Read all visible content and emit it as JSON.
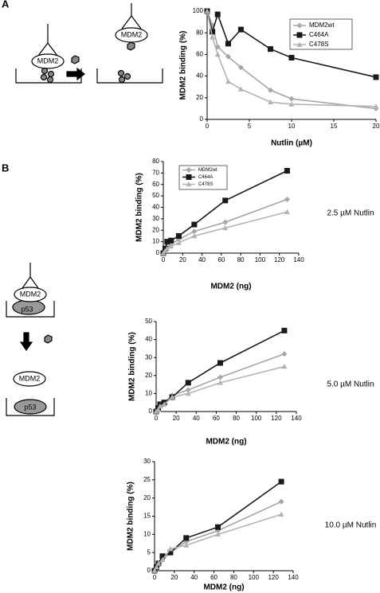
{
  "figure": {
    "panel_a": "A",
    "panel_b": "B"
  },
  "diagram": {
    "a_before": "MDM2",
    "a_after": "MDM2",
    "b_top": "MDM2",
    "b_top_p53": "p53",
    "b_bottom": "MDM2",
    "b_bottom_p53": "p53"
  },
  "chart_data": [
    {
      "type": "line",
      "x_label": "Nutlin (µM)",
      "y_label": "MDM2 binding (%)",
      "x": [
        0,
        0.625,
        1.25,
        2.5,
        4,
        7.5,
        10,
        20
      ],
      "series": [
        {
          "name": "MDM2wt",
          "color": "#a6a6a6",
          "marker": "diamond",
          "values": [
            100,
            87,
            67,
            58,
            48,
            27,
            19,
            10
          ]
        },
        {
          "name": "C464A",
          "color": "#1a1a1a",
          "marker": "square",
          "values": [
            100,
            81,
            97,
            70,
            83,
            65,
            57,
            39
          ]
        },
        {
          "name": "C478S",
          "color": "#b3b3b3",
          "marker": "triangle",
          "values": [
            100,
            76,
            60,
            35,
            28,
            16,
            14,
            12
          ]
        }
      ],
      "xlim": [
        0,
        20
      ],
      "xticks": [
        0,
        5,
        10,
        15,
        20
      ],
      "ylim": [
        0,
        100
      ],
      "yticks": [
        0,
        20,
        40,
        60,
        80,
        100
      ],
      "legend": "upper right"
    },
    {
      "type": "line",
      "x_label": "MDM2 (ng)",
      "y_label": "MDM2 binding (%)",
      "annotation": "2.5 µM Nutlin",
      "x": [
        0,
        2,
        4,
        8,
        16,
        32,
        64,
        128
      ],
      "series": [
        {
          "name": "MDM2wt",
          "color": "#a6a6a6",
          "marker": "diamond",
          "values": [
            0,
            3,
            5,
            8,
            12,
            19,
            27,
            47
          ]
        },
        {
          "name": "C464A",
          "color": "#1a1a1a",
          "marker": "square",
          "values": [
            0,
            4,
            10,
            11,
            15,
            25,
            46,
            72
          ]
        },
        {
          "name": "C478S",
          "color": "#b3b3b3",
          "marker": "triangle",
          "values": [
            0,
            2,
            4,
            6,
            9,
            15,
            22,
            36
          ]
        }
      ],
      "xlim": [
        0,
        140
      ],
      "xticks": [
        0,
        20,
        40,
        60,
        80,
        100,
        120,
        140
      ],
      "ylim": [
        0,
        80
      ],
      "yticks": [
        0,
        10,
        20,
        30,
        40,
        50,
        60,
        70,
        80
      ],
      "legend": "upper left"
    },
    {
      "type": "line",
      "x_label": "MDM2 (ng)",
      "y_label": "MDM2 binding (%)",
      "annotation": "5.0 µM Nutlin",
      "x": [
        0,
        2,
        4,
        8,
        16,
        32,
        64,
        128
      ],
      "series": [
        {
          "color": "#a6a6a6",
          "marker": "diamond",
          "values": [
            0,
            2,
            3,
            5,
            9,
            12,
            19,
            32
          ]
        },
        {
          "color": "#1a1a1a",
          "marker": "square",
          "values": [
            0,
            2,
            4,
            5,
            8,
            16,
            27,
            45
          ]
        },
        {
          "color": "#b3b3b3",
          "marker": "triangle",
          "values": [
            0,
            1,
            3,
            4,
            8,
            10,
            16,
            25
          ]
        }
      ],
      "xlim": [
        0,
        140
      ],
      "xticks": [
        0,
        20,
        40,
        60,
        80,
        100,
        120,
        140
      ],
      "ylim": [
        0,
        50
      ],
      "yticks": [
        0,
        10,
        20,
        30,
        40,
        50
      ]
    },
    {
      "type": "line",
      "x_label": "MDM2 (ng)",
      "y_label": "MDM2 binding (%)",
      "annotation": "10.0 µM Nutlin",
      "x": [
        0,
        2,
        4,
        8,
        16,
        32,
        64,
        128
      ],
      "series": [
        {
          "color": "#a6a6a6",
          "marker": "diamond",
          "values": [
            0,
            1,
            2,
            3,
            5,
            8,
            11,
            19
          ]
        },
        {
          "color": "#1a1a1a",
          "marker": "square",
          "values": [
            0,
            1,
            2,
            4,
            5,
            9,
            12,
            24.5
          ]
        },
        {
          "color": "#b3b3b3",
          "marker": "triangle",
          "values": [
            0,
            1,
            2,
            3,
            6,
            7,
            10,
            15.5
          ]
        }
      ],
      "xlim": [
        0,
        140
      ],
      "xticks": [
        0,
        20,
        40,
        60,
        80,
        100,
        120,
        140
      ],
      "ylim": [
        0,
        30
      ],
      "yticks": [
        0,
        5,
        10,
        15,
        20,
        25,
        30
      ]
    }
  ]
}
